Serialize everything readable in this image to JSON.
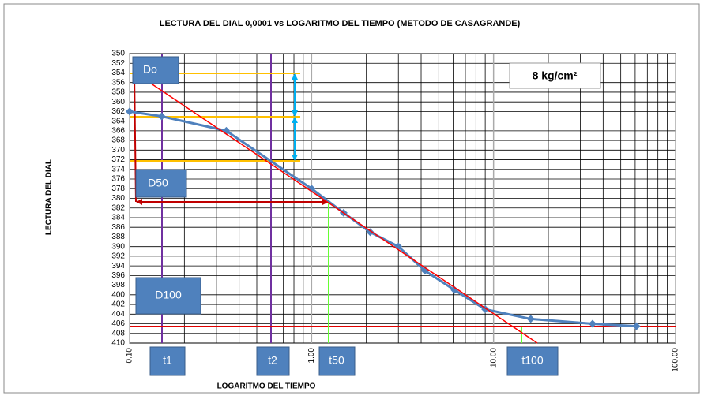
{
  "chart_data": {
    "type": "line",
    "title": "LECTURA DEL DIAL 0,0001 vs LOGARITMO DEL TIEMPO (METODO DE CASAGRANDE)",
    "x_label": "LOGARITMO DEL TIEMPO",
    "y_label": "LECTURA DEL DIAL",
    "x": [
      0.1,
      0.15,
      0.34,
      1.0,
      1.5,
      2.1,
      3.0,
      4.2,
      6.1,
      9.0,
      16,
      35,
      61
    ],
    "series": [
      {
        "name": "Lectura",
        "color": "#4f81bd",
        "values": [
          362,
          363,
          366,
          378,
          383,
          387,
          390,
          395,
          399,
          403,
          405,
          406,
          406.5
        ]
      }
    ],
    "xlog": true,
    "xlim": [
      0.1,
      100
    ],
    "xticks": [
      {
        "value": 0.1,
        "label": "0.10"
      },
      {
        "value": 1,
        "label": "1.00"
      },
      {
        "value": 10,
        "label": "10.00"
      },
      {
        "value": 100,
        "label": "100.00"
      }
    ],
    "xminorticks": [
      0.2,
      0.3,
      0.4,
      0.5,
      0.6,
      0.7,
      0.8,
      0.9,
      2,
      3,
      4,
      5,
      6,
      7,
      8,
      9,
      20,
      30,
      40,
      50,
      60,
      70,
      80,
      90
    ],
    "ylim": [
      350,
      410
    ],
    "yinverted": true,
    "yticks": [
      350,
      352,
      354,
      356,
      358,
      360,
      362,
      364,
      366,
      368,
      370,
      372,
      374,
      376,
      378,
      380,
      382,
      384,
      386,
      388,
      390,
      392,
      394,
      396,
      398,
      400,
      402,
      404,
      406,
      408,
      410
    ],
    "grid": true,
    "annotations": {
      "do": "Do",
      "d50": "D50",
      "d100": "D100",
      "t1": "t1",
      "t2": "t2",
      "t50": "t50",
      "t100": "t100",
      "load": "8 kg/cm²"
    }
  }
}
